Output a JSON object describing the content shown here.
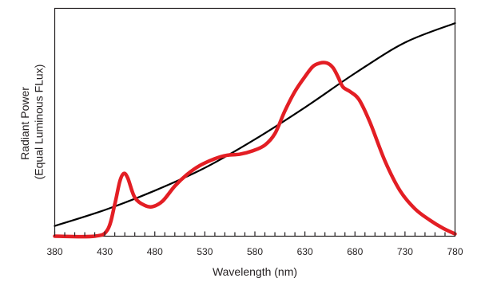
{
  "chart_data": {
    "type": "line",
    "title": "",
    "xlabel": "Wavelength (nm)",
    "ylabel_lines": [
      "Radiant Power",
      "(Equal Luminous FLux)"
    ],
    "xlim": [
      380,
      780
    ],
    "ylim": [
      0,
      1
    ],
    "x_ticks": [
      380,
      430,
      480,
      530,
      580,
      630,
      680,
      730,
      780
    ],
    "minor_tick_step": 10,
    "grid": false,
    "legend": "none",
    "series": [
      {
        "color": "#000000",
        "points": [
          [
            380,
            0.045
          ],
          [
            430,
            0.115
          ],
          [
            480,
            0.2
          ],
          [
            530,
            0.3
          ],
          [
            580,
            0.425
          ],
          [
            630,
            0.565
          ],
          [
            680,
            0.715
          ],
          [
            730,
            0.85
          ],
          [
            780,
            0.935
          ]
        ]
      },
      {
        "color": "#e31e24",
        "points": [
          [
            380,
            0.0
          ],
          [
            420,
            0.0
          ],
          [
            433,
            0.03
          ],
          [
            440,
            0.14
          ],
          [
            445,
            0.24
          ],
          [
            449,
            0.275
          ],
          [
            453,
            0.255
          ],
          [
            460,
            0.17
          ],
          [
            470,
            0.135
          ],
          [
            478,
            0.13
          ],
          [
            488,
            0.155
          ],
          [
            500,
            0.22
          ],
          [
            512,
            0.27
          ],
          [
            525,
            0.31
          ],
          [
            540,
            0.34
          ],
          [
            552,
            0.355
          ],
          [
            565,
            0.36
          ],
          [
            578,
            0.375
          ],
          [
            590,
            0.4
          ],
          [
            600,
            0.45
          ],
          [
            610,
            0.55
          ],
          [
            620,
            0.635
          ],
          [
            630,
            0.7
          ],
          [
            638,
            0.745
          ],
          [
            645,
            0.76
          ],
          [
            652,
            0.76
          ],
          [
            658,
            0.74
          ],
          [
            663,
            0.7
          ],
          [
            668,
            0.655
          ],
          [
            675,
            0.635
          ],
          [
            684,
            0.6
          ],
          [
            695,
            0.5
          ],
          [
            710,
            0.33
          ],
          [
            725,
            0.2
          ],
          [
            740,
            0.12
          ],
          [
            755,
            0.07
          ],
          [
            768,
            0.035
          ],
          [
            780,
            0.01
          ]
        ]
      }
    ]
  }
}
